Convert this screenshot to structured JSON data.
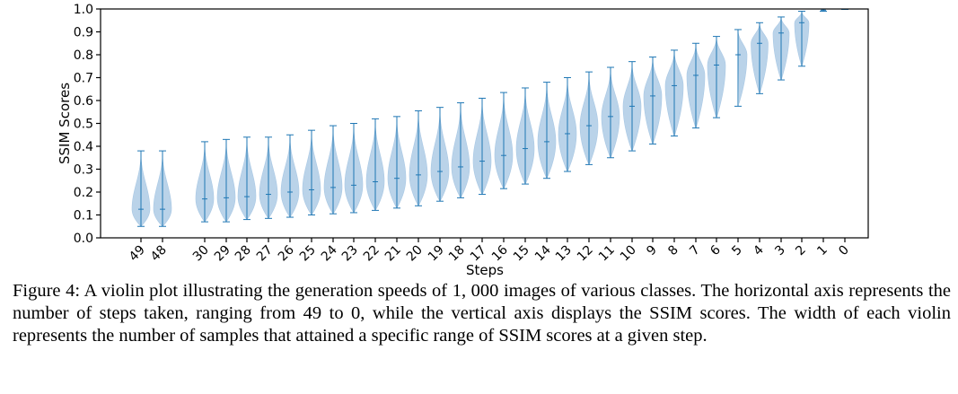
{
  "caption": "Figure 4: A violin plot illustrating the generation speeds of 1, 000 images of various classes. The horizontal axis represents the number of steps taken, ranging from 49 to 0, while the vertical axis displays the SSIM scores. The width of each violin represents the number of samples that attained a specific range of SSIM scores at a given step.",
  "colors": {
    "violin_fill": "#a9c8e4",
    "violin_line": "#1f77b4",
    "axis": "#000000"
  },
  "chart_data": {
    "type": "violin",
    "xlabel": "Steps",
    "ylabel": "SSIM Scores",
    "ylim": [
      0.0,
      1.0
    ],
    "yticks": [
      "0.0",
      "0.1",
      "0.2",
      "0.3",
      "0.4",
      "0.5",
      "0.6",
      "0.7",
      "0.8",
      "0.9",
      "1.0"
    ],
    "grid": false,
    "steps": [
      {
        "label": "49",
        "min": 0.05,
        "max": 0.38,
        "median": 0.125,
        "spread": 1.0
      },
      {
        "label": "48",
        "min": 0.05,
        "max": 0.38,
        "median": 0.125,
        "spread": 1.0
      },
      {
        "label": "30",
        "min": 0.07,
        "max": 0.42,
        "median": 0.17,
        "spread": 1.0
      },
      {
        "label": "29",
        "min": 0.07,
        "max": 0.43,
        "median": 0.175,
        "spread": 1.0
      },
      {
        "label": "28",
        "min": 0.08,
        "max": 0.44,
        "median": 0.18,
        "spread": 1.0
      },
      {
        "label": "27",
        "min": 0.085,
        "max": 0.44,
        "median": 0.19,
        "spread": 1.0
      },
      {
        "label": "26",
        "min": 0.09,
        "max": 0.45,
        "median": 0.2,
        "spread": 1.0
      },
      {
        "label": "25",
        "min": 0.1,
        "max": 0.47,
        "median": 0.21,
        "spread": 1.0
      },
      {
        "label": "24",
        "min": 0.105,
        "max": 0.49,
        "median": 0.22,
        "spread": 1.0
      },
      {
        "label": "23",
        "min": 0.11,
        "max": 0.5,
        "median": 0.23,
        "spread": 1.0
      },
      {
        "label": "22",
        "min": 0.12,
        "max": 0.52,
        "median": 0.245,
        "spread": 1.0
      },
      {
        "label": "21",
        "min": 0.13,
        "max": 0.53,
        "median": 0.26,
        "spread": 1.0
      },
      {
        "label": "20",
        "min": 0.14,
        "max": 0.555,
        "median": 0.275,
        "spread": 1.0
      },
      {
        "label": "19",
        "min": 0.16,
        "max": 0.57,
        "median": 0.29,
        "spread": 1.0
      },
      {
        "label": "18",
        "min": 0.175,
        "max": 0.59,
        "median": 0.31,
        "spread": 1.0
      },
      {
        "label": "17",
        "min": 0.19,
        "max": 0.61,
        "median": 0.335,
        "spread": 1.0
      },
      {
        "label": "16",
        "min": 0.215,
        "max": 0.635,
        "median": 0.36,
        "spread": 1.0
      },
      {
        "label": "15",
        "min": 0.235,
        "max": 0.655,
        "median": 0.39,
        "spread": 1.0
      },
      {
        "label": "14",
        "min": 0.26,
        "max": 0.68,
        "median": 0.42,
        "spread": 1.0
      },
      {
        "label": "13",
        "min": 0.29,
        "max": 0.7,
        "median": 0.455,
        "spread": 1.0
      },
      {
        "label": "12",
        "min": 0.32,
        "max": 0.725,
        "median": 0.49,
        "spread": 1.0
      },
      {
        "label": "11",
        "min": 0.35,
        "max": 0.745,
        "median": 0.53,
        "spread": 1.0
      },
      {
        "label": "10",
        "min": 0.38,
        "max": 0.77,
        "median": 0.575,
        "spread": 1.0
      },
      {
        "label": "9",
        "min": 0.41,
        "max": 0.79,
        "median": 0.62,
        "spread": 1.0
      },
      {
        "label": "8",
        "min": 0.445,
        "max": 0.82,
        "median": 0.665,
        "spread": 1.0
      },
      {
        "label": "7",
        "min": 0.48,
        "max": 0.85,
        "median": 0.71,
        "spread": 1.0
      },
      {
        "label": "6",
        "min": 0.525,
        "max": 0.88,
        "median": 0.755,
        "spread": 1.0
      },
      {
        "label": "5",
        "min": 0.575,
        "max": 0.91,
        "median": 0.8,
        "spread": 1.0
      },
      {
        "label": "4",
        "min": 0.63,
        "max": 0.94,
        "median": 0.85,
        "spread": 0.95
      },
      {
        "label": "3",
        "min": 0.69,
        "max": 0.965,
        "median": 0.895,
        "spread": 0.9
      },
      {
        "label": "2",
        "min": 0.75,
        "max": 0.99,
        "median": 0.94,
        "spread": 0.8
      },
      {
        "label": "1",
        "min": 0.99,
        "max": 1.0,
        "median": 0.995,
        "spread": 0.25
      },
      {
        "label": "0",
        "min": 0.998,
        "max": 1.0,
        "median": 1.0,
        "spread": 0.2
      }
    ]
  }
}
